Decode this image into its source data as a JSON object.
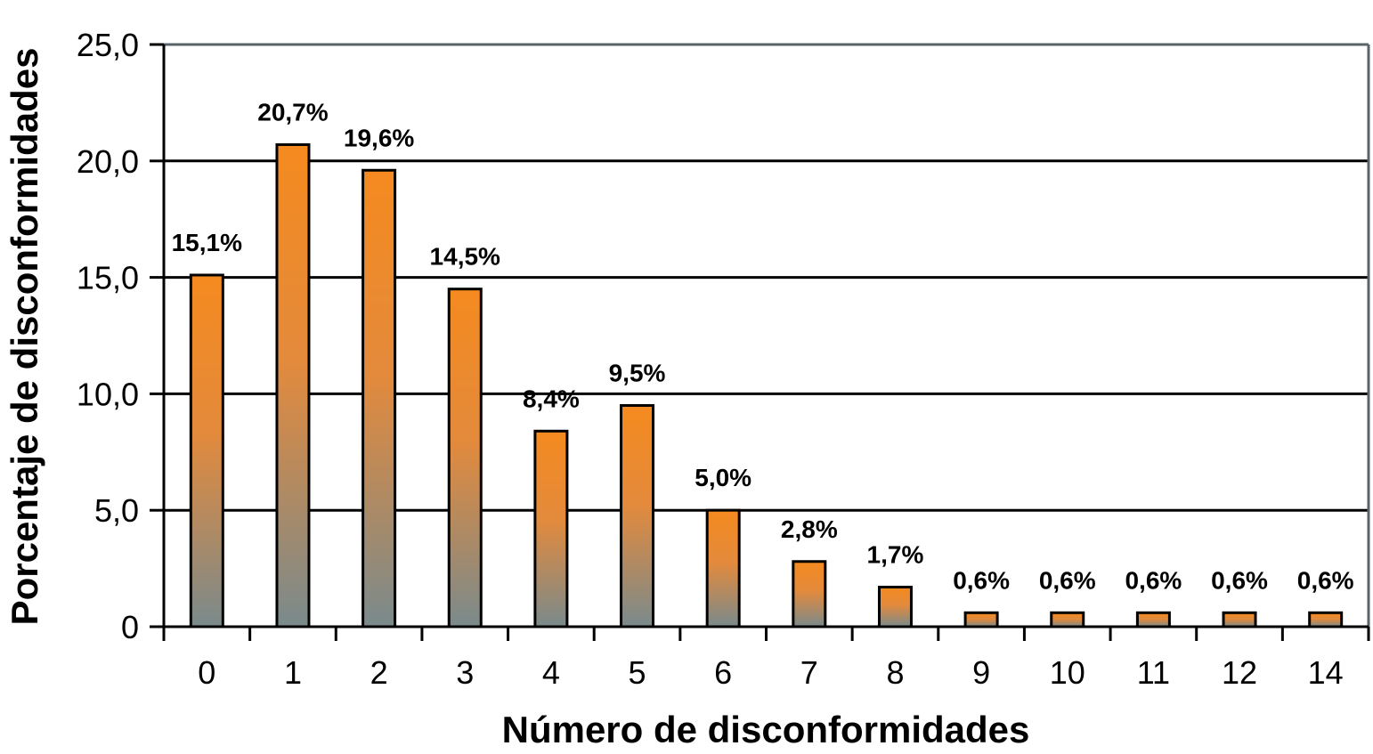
{
  "chart_data": {
    "type": "bar",
    "title": "",
    "xlabel": "Número de disconformidades",
    "ylabel": "Porcentaje de disconformidades",
    "categories": [
      "0",
      "1",
      "2",
      "3",
      "4",
      "5",
      "6",
      "7",
      "8",
      "9",
      "10",
      "11",
      "12",
      "14"
    ],
    "values": [
      15.1,
      20.7,
      19.6,
      14.5,
      8.4,
      9.5,
      5.0,
      2.8,
      1.7,
      0.6,
      0.6,
      0.6,
      0.6,
      0.6
    ],
    "data_labels": [
      "15,1%",
      "20,7%",
      "19,6%",
      "14,5%",
      "8,4%",
      "9,5%",
      "5,0%",
      "2,8%",
      "1,7%",
      "0,6%",
      "0,6%",
      "0,6%",
      "0,6%",
      "0,6%"
    ],
    "ylim": [
      0,
      25
    ],
    "yticks": [
      0,
      5,
      10,
      15,
      20,
      25
    ],
    "ytick_labels": [
      "0",
      "5,0",
      "10,0",
      "15,0",
      "20,0",
      "25,0"
    ],
    "grid": true,
    "legend": "none",
    "colors": {
      "bar_top": "#f58a1f",
      "bar_bottom": "#7a8a8c",
      "bar_stroke": "#000000",
      "gridline": "#000000",
      "frame": "#5a6468"
    }
  }
}
